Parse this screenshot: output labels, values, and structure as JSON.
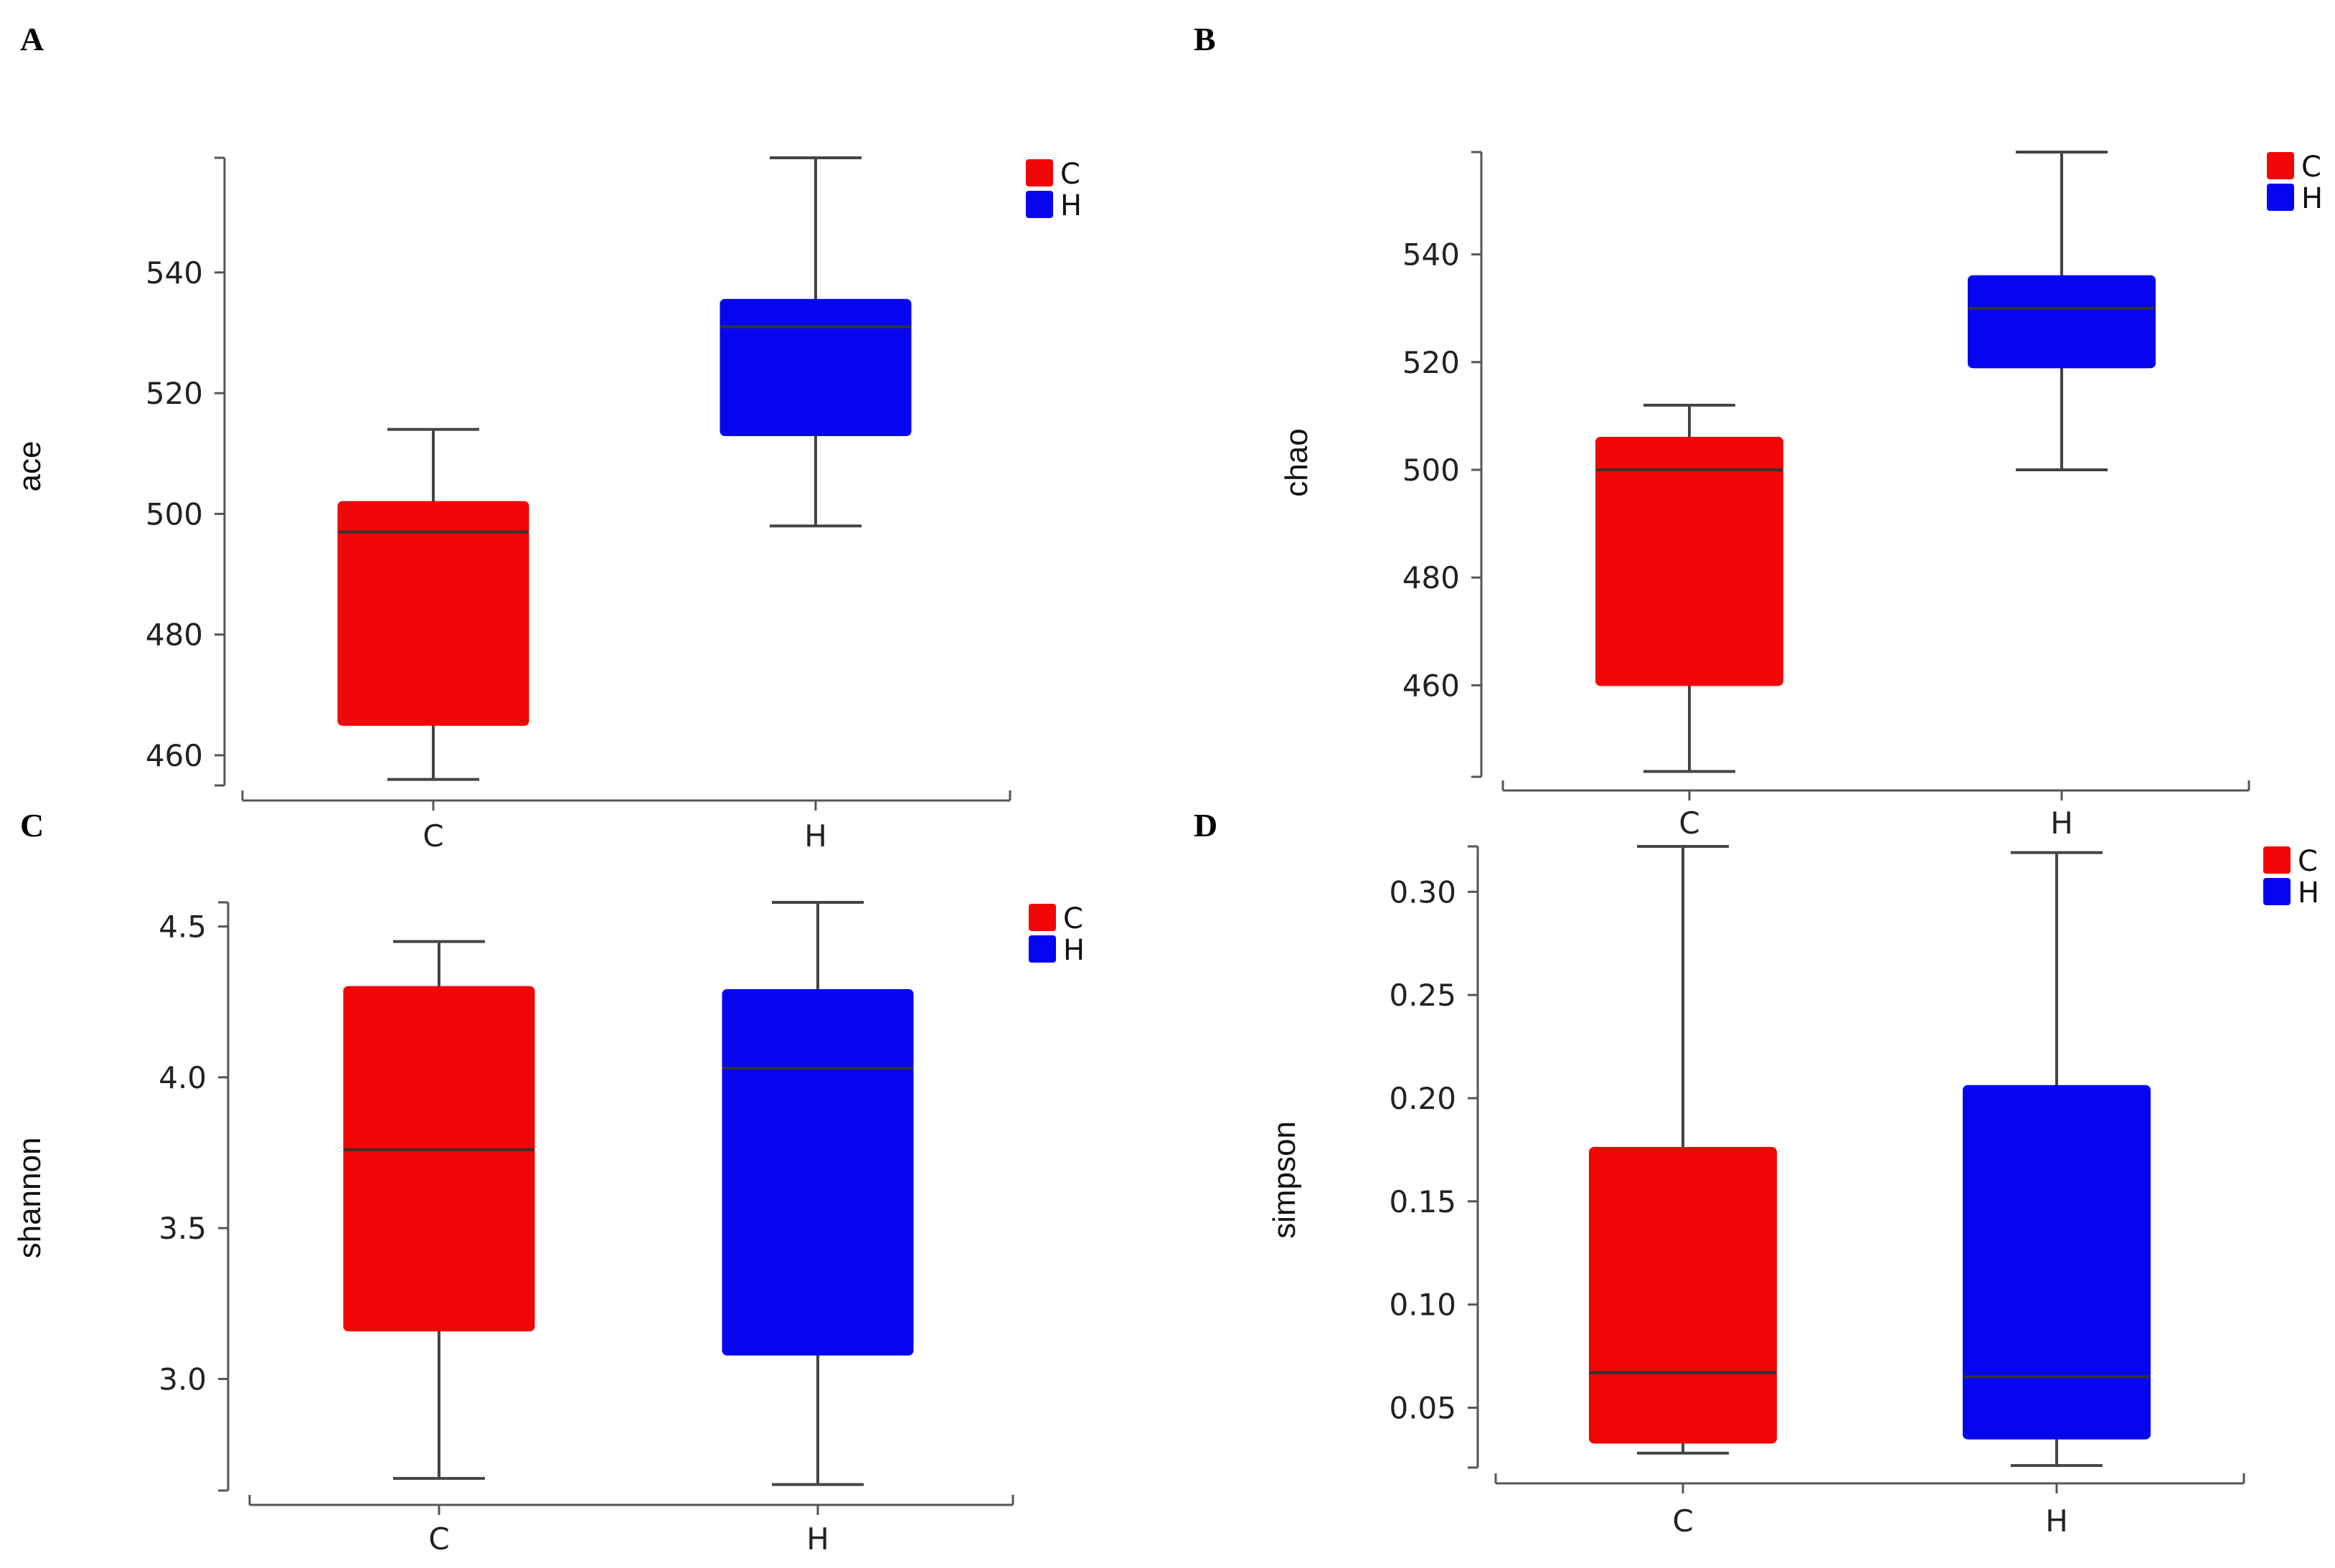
{
  "colors": {
    "C": "#f20505",
    "H": "#0505f2"
  },
  "chart_data": [
    {
      "panel": "A",
      "type": "box",
      "ylabel": "ace",
      "categories": [
        "C",
        "H"
      ],
      "yticks": [
        460,
        480,
        500,
        520,
        540
      ],
      "ylim": [
        455,
        559
      ],
      "legend": [
        "C",
        "H"
      ],
      "boxes": [
        {
          "name": "C",
          "min": 456,
          "q1": 465,
          "median": 497,
          "q3": 502,
          "max": 514
        },
        {
          "name": "H",
          "min": 498,
          "q1": 513,
          "median": 531,
          "q3": 535.5,
          "max": 559
        }
      ]
    },
    {
      "panel": "B",
      "type": "box",
      "ylabel": "chao",
      "categories": [
        "C",
        "H"
      ],
      "yticks": [
        460,
        480,
        500,
        520,
        540
      ],
      "ylim": [
        443,
        559
      ],
      "legend": [
        "C",
        "H"
      ],
      "boxes": [
        {
          "name": "C",
          "min": 444,
          "q1": 460,
          "median": 500,
          "q3": 506,
          "max": 512
        },
        {
          "name": "H",
          "min": 500,
          "q1": 519,
          "median": 530,
          "q3": 536,
          "max": 559
        }
      ]
    },
    {
      "panel": "C",
      "type": "box",
      "ylabel": "shannon",
      "categories": [
        "C",
        "H"
      ],
      "yticks": [
        "3.0",
        "3.5",
        "4.0",
        "4.5"
      ],
      "ylim": [
        2.63,
        4.58
      ],
      "legend": [
        "C",
        "H"
      ],
      "boxes": [
        {
          "name": "C",
          "min": 2.67,
          "q1": 3.16,
          "median": 3.76,
          "q3": 4.3,
          "max": 4.45
        },
        {
          "name": "H",
          "min": 2.65,
          "q1": 3.08,
          "median": 4.03,
          "q3": 4.29,
          "max": 4.58
        }
      ]
    },
    {
      "panel": "D",
      "type": "box",
      "ylabel": "simpson",
      "categories": [
        "C",
        "H"
      ],
      "yticks": [
        "0.05",
        "0.10",
        "0.15",
        "0.20",
        "0.25",
        "0.30"
      ],
      "ylim": [
        0.021,
        0.322
      ],
      "legend": [
        "C",
        "H"
      ],
      "boxes": [
        {
          "name": "C",
          "min": 0.028,
          "q1": 0.033,
          "median": 0.067,
          "q3": 0.176,
          "max": 0.322
        },
        {
          "name": "H",
          "min": 0.022,
          "q1": 0.035,
          "median": 0.065,
          "q3": 0.206,
          "max": 0.319
        }
      ]
    }
  ]
}
